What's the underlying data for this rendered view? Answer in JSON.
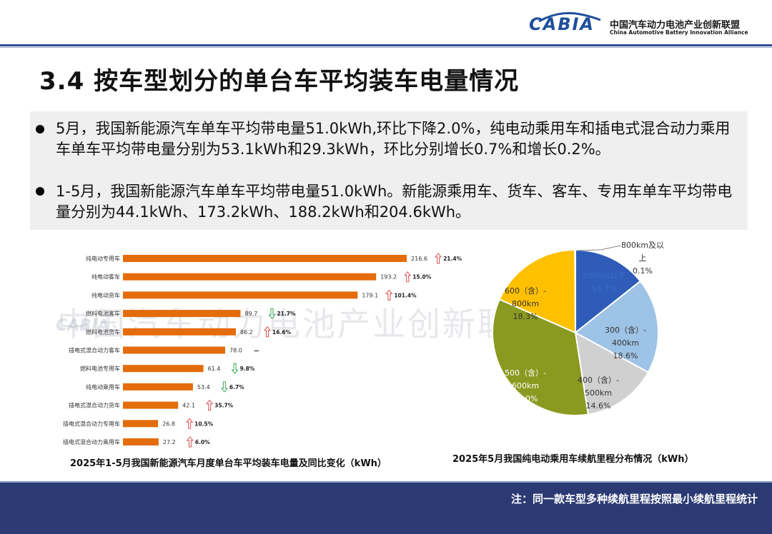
{
  "header": {
    "logo_text": "CABIA",
    "org_cn": "中国汽车动力电池产业创新联盟",
    "org_en": "China Automotive Battery Innovation Alliance"
  },
  "title": "3.4 按车型划分的单台车平均装车电量情况",
  "summary": [
    "5月，我国新能源汽车单车平均带电量51.0kWh,环比下降2.0%，纯电动乘用车和插电式混合动力乘用车单车平均带电量分别为53.1kWh和29.3kWh，环比分别增长0.7%和增长0.2%。",
    "1-5月，我国新能源汽车单车平均带电量51.0kWh。新能源乘用车、货车、客车、专用车单车平均带电量分别为44.1kWh、173.2kWh、188.2kWh和204.6kWh。"
  ],
  "watermark": "中国汽车动力电池产业创新联盟",
  "chart_data": [
    {
      "type": "bar",
      "orientation": "horizontal",
      "title": "2025年1-5月我国新能源汽车月度单台车平均装车电量及同比变化（kWh）",
      "categories": [
        "纯电动专用车",
        "纯电动客车",
        "纯电动货车",
        "燃料电池客车",
        "燃料电池货车",
        "插电式混合动力客车",
        "燃料电池专用车",
        "纯电动乘用车",
        "插电式混合动力货车",
        "插电式混合动力专用车",
        "插电式混合动力乘用车"
      ],
      "values": [
        216.6,
        193.2,
        179.1,
        89.7,
        86.2,
        78.0,
        61.4,
        53.4,
        42.1,
        26.8,
        27.2
      ],
      "value_labels": [
        "216.6",
        "193.2",
        "179.1",
        "89.7",
        "86.2",
        "78.0",
        "61.4",
        "53.4",
        "42.1",
        "26.8",
        "27.2"
      ],
      "changes": [
        "21.4%",
        "15.0%",
        "101.4%",
        "21.7%",
        "16.6%",
        "—",
        "9.8%",
        "6.7%",
        "35.7%",
        "10.5%",
        "6.0%"
      ],
      "change_direction": [
        "up",
        "up",
        "up",
        "down",
        "up",
        "none",
        "down",
        "down",
        "up",
        "up",
        "up"
      ],
      "bar_color": "#e46c0a",
      "up_color": "#e05050",
      "down_color": "#3aa85a",
      "xlim": [
        0,
        240
      ]
    },
    {
      "type": "pie",
      "title": "2025年5月我国纯电动乘用车续航里程分布情况（kWh）",
      "slices": [
        {
          "label": "300km以下",
          "value": 14.3,
          "value_label": "14.3%",
          "color": "#2e5cb8",
          "text_color": "#3a6cc8"
        },
        {
          "label": "300（含）-400km",
          "value": 18.6,
          "value_label": "18.6%",
          "color": "#9dc3e6",
          "text_color": "#333333"
        },
        {
          "label": "400（含）-500km",
          "value": 14.6,
          "value_label": "14.6%",
          "color": "#d0d0d0",
          "text_color": "#333333"
        },
        {
          "label": "500（含）-600km",
          "value": 34.0,
          "value_label": "34.0%",
          "color": "#8a9a20",
          "text_color": "#ffffff"
        },
        {
          "label": "600（含）-800km",
          "value": 18.3,
          "value_label": "18.3%",
          "color": "#ffc000",
          "text_color": "#333333"
        },
        {
          "label": "800km及以上",
          "value": 0.1,
          "value_label": "0.1%",
          "color": "#4472c4",
          "text_color": "#333333"
        }
      ],
      "slice_label_lines": [
        [
          "300km以下",
          "14.3%"
        ],
        [
          "300（含）-",
          "400km",
          "18.6%"
        ],
        [
          "400（含）-",
          "500km",
          "14.6%"
        ],
        [
          "500（含）-",
          "600km",
          "34.0%"
        ],
        [
          "600（含）-",
          "800km",
          "18.3%"
        ],
        [
          "800km及以",
          "上",
          "0.1%"
        ]
      ]
    }
  ],
  "footer_note": "注：同一款车型多种续航里程按照最小续航里程统计"
}
